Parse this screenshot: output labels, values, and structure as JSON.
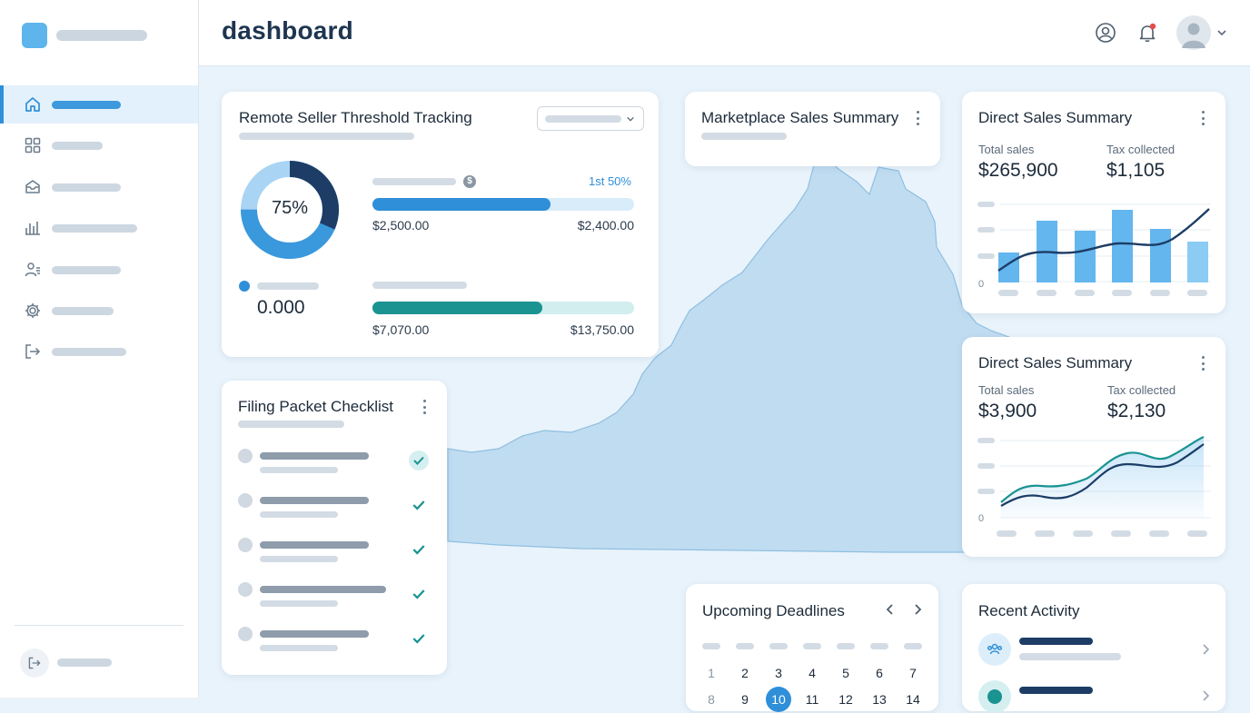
{
  "header": {
    "title": "dashboard"
  },
  "icons": {
    "nav": [
      "home-icon",
      "grid-icon",
      "inbox-icon",
      "bar-chart-icon",
      "users-icon",
      "gear-icon",
      "logout-icon"
    ],
    "header": [
      "user-circle-icon",
      "bell-icon",
      "avatar",
      "chevron-down-icon"
    ]
  },
  "colors": {
    "accent": "#2f8fd8",
    "teal": "#1a9391",
    "navy": "#1d3d66",
    "notification": "#e84b4b"
  },
  "threshold_card": {
    "title": "Remote Seller Threshold Tracking",
    "donut_label": "75%",
    "donut_percent": 75,
    "value": "0.000",
    "bar1": {
      "tag": "1st 50%",
      "left": "$2,500.00",
      "right": "$2,400.00",
      "fill_fraction": 0.68
    },
    "bar2": {
      "left": "$7,070.00",
      "right": "$13,750.00",
      "fill_fraction": 0.65
    }
  },
  "marketplace_card": {
    "title": "Marketplace Sales Summary"
  },
  "direct_sales_1": {
    "title": "Direct Sales Summary",
    "total_label": "Total sales",
    "total_value": "$265,900",
    "tax_label": "Tax collected",
    "tax_value": "$1,105",
    "y_zero": "0"
  },
  "direct_sales_2": {
    "title": "Direct Sales Summary",
    "total_label": "Total sales",
    "total_value": "$3,900",
    "tax_label": "Tax collected",
    "tax_value": "$2,130",
    "y_zero": "0"
  },
  "checklist_card": {
    "title": "Filing Packet Checklist",
    "items_checked": [
      true,
      true,
      true,
      true,
      true
    ]
  },
  "deadlines_card": {
    "title": "Upcoming Deadlines",
    "days_row1": [
      "1",
      "2",
      "3",
      "4",
      "5",
      "6",
      "7"
    ],
    "days_row2": [
      "8",
      "9",
      "10",
      "11",
      "12",
      "13",
      "14"
    ],
    "selected_day": "10"
  },
  "activity_card": {
    "title": "Recent Activity"
  }
}
